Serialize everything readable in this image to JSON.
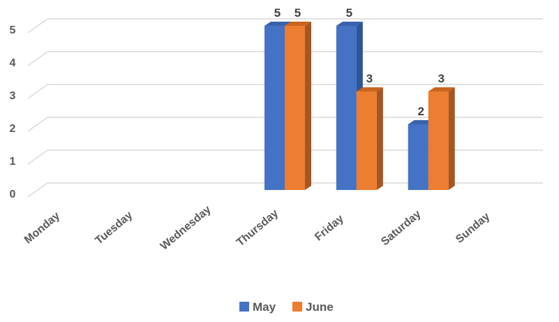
{
  "chart_data": {
    "type": "bar",
    "style": "3d-clustered-column",
    "categories": [
      "Monday",
      "Tuesday",
      "Wednesday",
      "Thursday",
      "Friday",
      "Saturday",
      "Sunday"
    ],
    "series": [
      {
        "name": "May",
        "color": "#4472C4",
        "side_color": "#2F5597",
        "top_color": "#3A62AC",
        "values": [
          null,
          null,
          null,
          5,
          5,
          2,
          null
        ]
      },
      {
        "name": "June",
        "color": "#ED7D31",
        "side_color": "#A85620",
        "top_color": "#C9651F",
        "values": [
          null,
          null,
          null,
          5,
          3,
          3,
          null
        ]
      }
    ],
    "ylim": [
      0,
      5
    ],
    "yticks": [
      0,
      1,
      2,
      3,
      4,
      5
    ],
    "grid": true,
    "data_labels": true,
    "legend_position": "bottom",
    "xlabel": "",
    "ylabel": "",
    "title": ""
  }
}
